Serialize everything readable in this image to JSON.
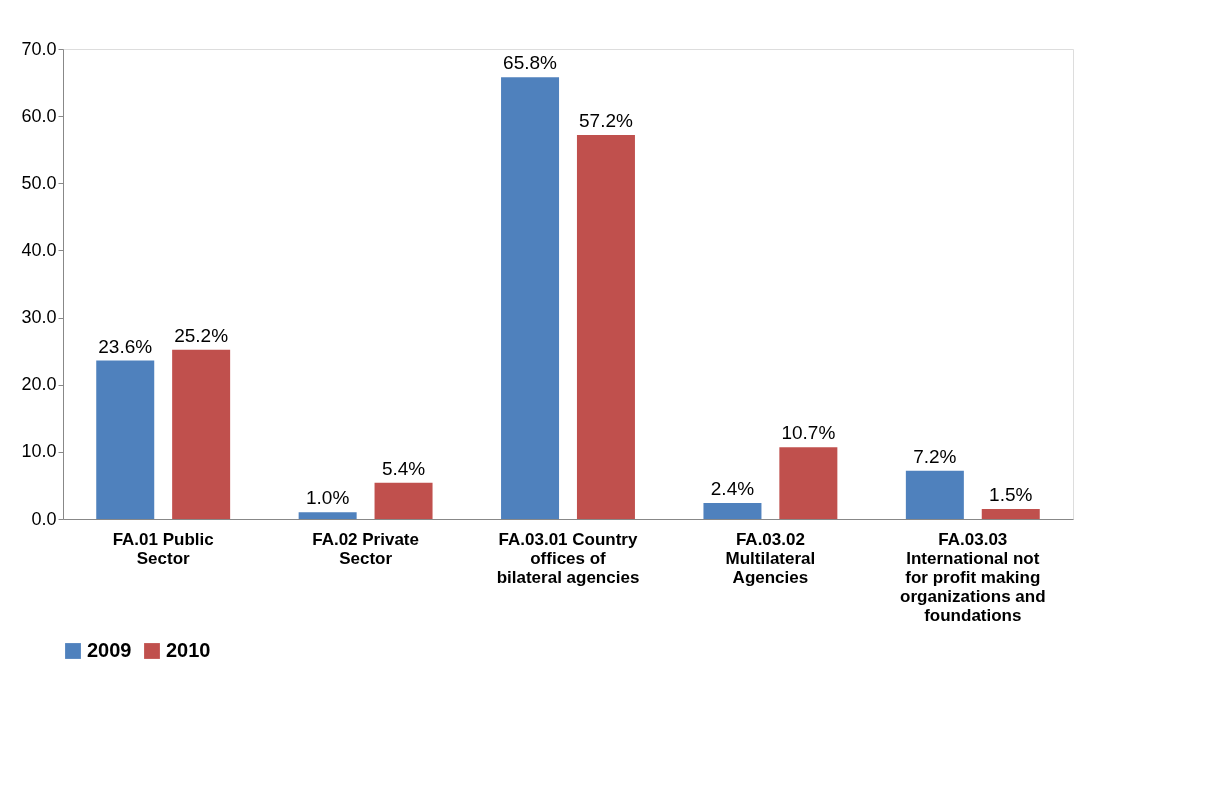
{
  "chart_data": {
    "type": "bar",
    "categories": [
      "FA.01 Public Sector",
      "FA.02 Private Sector",
      "FA.03.01 Country offices of bilateral agencies",
      "FA.03.02 Multilateral Agencies",
      "FA.03.03 International not for profit making organizations and foundations"
    ],
    "series": [
      {
        "name": "2009",
        "color": "#4f81bd",
        "values": [
          23.6,
          1.0,
          65.8,
          2.4,
          7.2
        ],
        "value_labels": [
          "23.6%",
          "1.0%",
          "65.8%",
          "2.4%",
          "7.2%"
        ]
      },
      {
        "name": "2010",
        "color": "#c0504d",
        "values": [
          25.2,
          5.4,
          57.2,
          10.7,
          1.5
        ],
        "value_labels": [
          "25.2%",
          "5.4%",
          "57.2%",
          "10.7%",
          "1.5%"
        ]
      }
    ],
    "ylim": [
      0,
      70
    ],
    "yticks": [
      {
        "value": 0,
        "label": "0.0"
      },
      {
        "value": 10,
        "label": "10.0"
      },
      {
        "value": 20,
        "label": "20.0"
      },
      {
        "value": 30,
        "label": "30.0"
      },
      {
        "value": 40,
        "label": "40.0"
      },
      {
        "value": 50,
        "label": "50.0"
      },
      {
        "value": 60,
        "label": "60.0"
      },
      {
        "value": 70,
        "label": "70.0"
      }
    ],
    "grid": false,
    "legend": "bottom"
  }
}
